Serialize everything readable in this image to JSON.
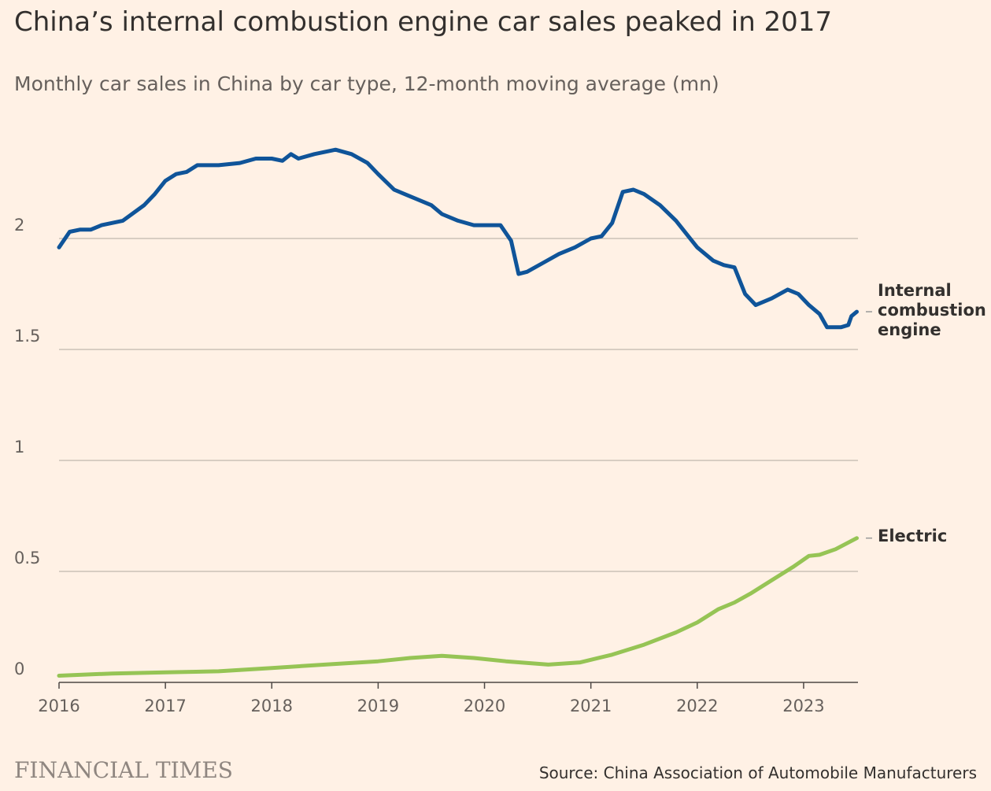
{
  "chart_data": {
    "type": "line",
    "title": "China’s internal combustion engine car sales peaked in 2017",
    "subtitle": "Monthly car sales in China by car type, 12-month moving average (mn)",
    "source": "Source: China Association of Automobile Manufacturers",
    "logo": "FINANCIAL TIMES",
    "xlim": [
      2016,
      2023.5
    ],
    "xticks": [
      2016,
      2017,
      2018,
      2019,
      2020,
      2021,
      2022,
      2023
    ],
    "ylim": [
      0,
      2.5
    ],
    "yticks": [
      0,
      0.5,
      1,
      1.5,
      2
    ],
    "grid": true,
    "series": [
      {
        "name": "Internal combustion engine",
        "color": "#0f5499",
        "x": [
          2016.0,
          2016.1,
          2016.2,
          2016.3,
          2016.4,
          2016.6,
          2016.8,
          2016.9,
          2017.0,
          2017.1,
          2017.2,
          2017.3,
          2017.5,
          2017.7,
          2017.85,
          2018.0,
          2018.1,
          2018.18,
          2018.25,
          2018.4,
          2018.6,
          2018.75,
          2018.9,
          2019.0,
          2019.15,
          2019.3,
          2019.5,
          2019.6,
          2019.75,
          2019.9,
          2020.0,
          2020.15,
          2020.25,
          2020.32,
          2020.4,
          2020.55,
          2020.7,
          2020.85,
          2021.0,
          2021.1,
          2021.2,
          2021.3,
          2021.4,
          2021.5,
          2021.65,
          2021.8,
          2021.9,
          2022.0,
          2022.15,
          2022.25,
          2022.35,
          2022.45,
          2022.55,
          2022.7,
          2022.85,
          2022.95,
          2023.05,
          2023.15,
          2023.22,
          2023.35,
          2023.42,
          2023.45,
          2023.5
        ],
        "values": [
          1.96,
          2.03,
          2.04,
          2.04,
          2.06,
          2.08,
          2.15,
          2.2,
          2.26,
          2.29,
          2.3,
          2.33,
          2.33,
          2.34,
          2.36,
          2.36,
          2.35,
          2.38,
          2.36,
          2.38,
          2.4,
          2.38,
          2.34,
          2.29,
          2.22,
          2.19,
          2.15,
          2.11,
          2.08,
          2.06,
          2.06,
          2.06,
          1.99,
          1.84,
          1.85,
          1.89,
          1.93,
          1.96,
          2.0,
          2.01,
          2.07,
          2.21,
          2.22,
          2.2,
          2.15,
          2.08,
          2.02,
          1.96,
          1.9,
          1.88,
          1.87,
          1.75,
          1.7,
          1.73,
          1.77,
          1.75,
          1.7,
          1.66,
          1.6,
          1.6,
          1.61,
          1.65,
          1.67
        ]
      },
      {
        "name": "Electric",
        "color": "#96c455",
        "x": [
          2016.0,
          2016.5,
          2017.0,
          2017.5,
          2018.0,
          2018.5,
          2019.0,
          2019.3,
          2019.6,
          2019.9,
          2020.2,
          2020.6,
          2020.9,
          2021.2,
          2021.5,
          2021.8,
          2022.0,
          2022.2,
          2022.35,
          2022.5,
          2022.7,
          2022.9,
          2023.05,
          2023.15,
          2023.3,
          2023.5
        ],
        "values": [
          0.03,
          0.04,
          0.045,
          0.05,
          0.065,
          0.08,
          0.095,
          0.11,
          0.12,
          0.11,
          0.095,
          0.08,
          0.09,
          0.125,
          0.17,
          0.225,
          0.27,
          0.33,
          0.36,
          0.4,
          0.46,
          0.52,
          0.57,
          0.575,
          0.6,
          0.65
        ]
      }
    ]
  }
}
